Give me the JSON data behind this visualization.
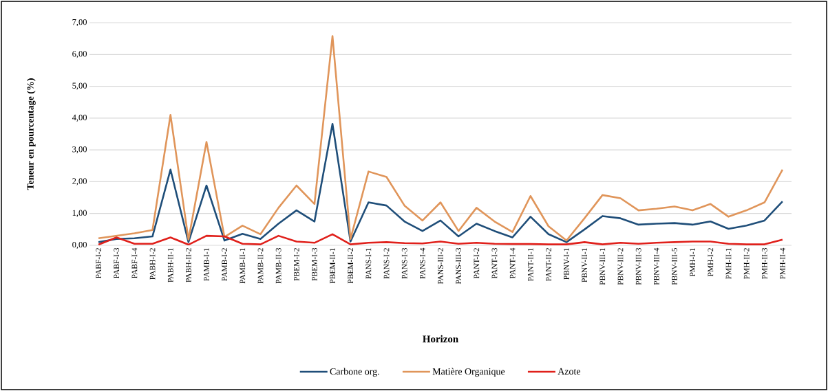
{
  "chart_data": {
    "type": "line",
    "xlabel": "Horizon",
    "ylabel": "Teneur en pourcentage (%)",
    "categories": [
      "PABF-I-2",
      "PABF-I-3",
      "PABF-I-4",
      "PABH-I-2",
      "PABH-II-1",
      "PABH-II-2",
      "PAMB-I-1",
      "PAMB-I-2",
      "PAMB-II-1",
      "PAMB-II-2",
      "PAMB-II-3",
      "PBEM-I-2",
      "PBEM-I-3",
      "PBEM-II-1",
      "PBEM-II-2",
      "PANS-I-1",
      "PANS-I-2",
      "PANS-I-3",
      "PANS-I-4",
      "PANS-III-2",
      "PANS-III-3",
      "PANT-I-2",
      "PANT-I-3",
      "PANT-I-4",
      "PANT-II-1",
      "PANT-II-2",
      "PBNV-I-1",
      "PBNV-II-1",
      "PBNV-III-1",
      "PBNV-III-2",
      "PBNV-III-3",
      "PBNV-III-4",
      "PBNV-III-5",
      "PMH-I-1",
      "PMH-I-2",
      "PMH-II-1",
      "PMH-II-2",
      "PMH-II-3",
      "PMH-II-4"
    ],
    "series": [
      {
        "name": "Carbone org.",
        "color": "#1f4e79",
        "values": [
          0.1,
          0.2,
          0.22,
          0.28,
          2.38,
          0.1,
          1.88,
          0.15,
          0.36,
          0.2,
          0.68,
          1.1,
          0.75,
          3.82,
          0.12,
          1.35,
          1.25,
          0.75,
          0.45,
          0.78,
          0.28,
          0.68,
          0.45,
          0.25,
          0.9,
          0.35,
          0.1,
          0.5,
          0.92,
          0.85,
          0.65,
          0.68,
          0.7,
          0.65,
          0.75,
          0.52,
          0.62,
          0.78,
          1.38
        ]
      },
      {
        "name": "Matière Organique",
        "color": "#e0955a",
        "values": [
          0.22,
          0.3,
          0.38,
          0.48,
          4.1,
          0.18,
          3.25,
          0.26,
          0.62,
          0.35,
          1.18,
          1.88,
          1.3,
          6.58,
          0.2,
          2.32,
          2.15,
          1.25,
          0.78,
          1.35,
          0.45,
          1.18,
          0.75,
          0.42,
          1.55,
          0.6,
          0.15,
          0.85,
          1.58,
          1.48,
          1.1,
          1.15,
          1.22,
          1.1,
          1.3,
          0.9,
          1.1,
          1.35,
          2.38
        ]
      },
      {
        "name": "Azote",
        "color": "#e0201b",
        "values": [
          0.02,
          0.25,
          0.05,
          0.05,
          0.25,
          0.02,
          0.3,
          0.28,
          0.05,
          0.03,
          0.3,
          0.12,
          0.08,
          0.35,
          0.03,
          0.08,
          0.1,
          0.07,
          0.06,
          0.12,
          0.05,
          0.08,
          0.05,
          0.04,
          0.04,
          0.03,
          0.03,
          0.1,
          0.03,
          0.08,
          0.05,
          0.08,
          0.1,
          0.12,
          0.12,
          0.05,
          0.03,
          0.03,
          0.18
        ]
      }
    ],
    "ylim": [
      0,
      7
    ],
    "yticks": [
      {
        "value": 0,
        "label": "0,00"
      },
      {
        "value": 1,
        "label": "1,00"
      },
      {
        "value": 2,
        "label": "2,00"
      },
      {
        "value": 3,
        "label": "3,00"
      },
      {
        "value": 4,
        "label": "4,00"
      },
      {
        "value": 5,
        "label": "5,00"
      },
      {
        "value": 6,
        "label": "6,00"
      },
      {
        "value": 7,
        "label": "7,00"
      }
    ],
    "grid": "y",
    "legend": "bottom",
    "marker": "none",
    "line_style": "solid"
  }
}
